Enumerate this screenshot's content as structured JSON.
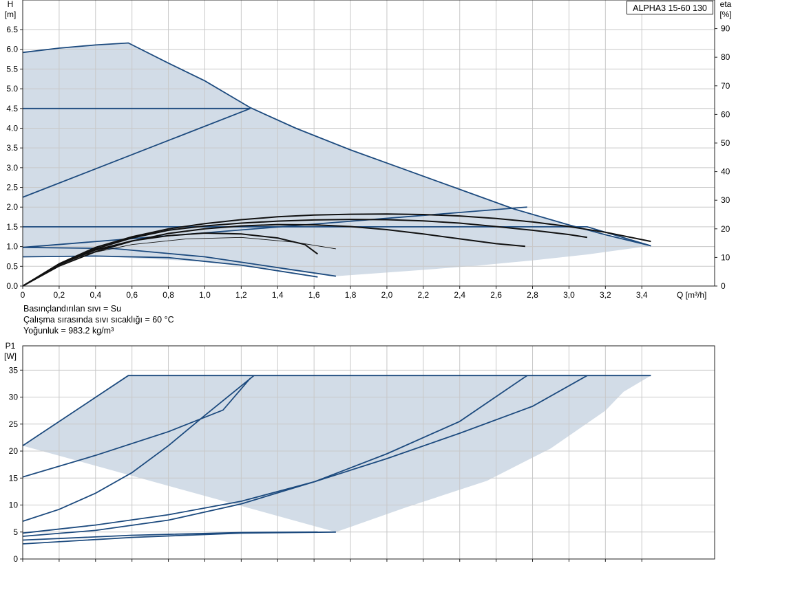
{
  "model": "ALPHA3 15-60 130",
  "info_lines": [
    "Basınçlandırılan sıvı = Su",
    "Çalışma sırasında sıvı sıcaklığı = 60 °C",
    "Yoğunluk = 983.2 kg/m³"
  ],
  "colors": {
    "fill": "#d2dce7",
    "curve": "#1c4a7e",
    "eta": "#111111",
    "grid": "#c8c8c8",
    "frame": "#222222"
  },
  "chart_data": [
    {
      "type": "line",
      "name": "head",
      "y_label_top": "H",
      "y_unit": "[m]",
      "y2_label_top": "eta",
      "y2_unit": "[%]",
      "x_label": "Q [m³/h]",
      "xlim": [
        0,
        3.8
      ],
      "ylim": [
        0,
        7.25
      ],
      "y2lim": [
        0,
        100
      ],
      "x_ticks": [
        "0",
        "0,2",
        "0,4",
        "0,6",
        "0,8",
        "1,0",
        "1,2",
        "1,4",
        "1,6",
        "1,8",
        "2,0",
        "2,2",
        "2,4",
        "2,6",
        "2,8",
        "3,0",
        "3,2",
        "3,4"
      ],
      "y_ticks": [
        "0.0",
        "0.5",
        "1.0",
        "1.5",
        "2.0",
        "2.5",
        "3.0",
        "3.5",
        "4.0",
        "4.5",
        "5.0",
        "5.5",
        "6.0",
        "6.5"
      ],
      "y2_ticks": [
        "0",
        "10",
        "20",
        "30",
        "40",
        "50",
        "60",
        "70",
        "80",
        "90"
      ],
      "grid": true,
      "envelope": [
        [
          0,
          5.92
        ],
        [
          0.2,
          6.03
        ],
        [
          0.4,
          6.11
        ],
        [
          0.58,
          6.16
        ],
        [
          0.8,
          5.65
        ],
        [
          1.0,
          5.2
        ],
        [
          1.25,
          4.52
        ],
        [
          1.5,
          4.0
        ],
        [
          1.8,
          3.45
        ],
        [
          2.1,
          2.95
        ],
        [
          2.4,
          2.45
        ],
        [
          2.7,
          1.95
        ],
        [
          3.0,
          1.55
        ],
        [
          3.2,
          1.3
        ],
        [
          3.45,
          1.02
        ],
        [
          3.1,
          0.8
        ],
        [
          2.8,
          0.65
        ],
        [
          2.5,
          0.52
        ],
        [
          2.2,
          0.41
        ],
        [
          1.9,
          0.31
        ],
        [
          1.72,
          0.25
        ],
        [
          1.4,
          0.42
        ],
        [
          1.0,
          0.62
        ],
        [
          0.4,
          0.75
        ],
        [
          0,
          0.74
        ]
      ],
      "head_curves": [
        {
          "name": "max-curve",
          "points": [
            [
              0,
              5.92
            ],
            [
              0.2,
              6.03
            ],
            [
              0.4,
              6.11
            ],
            [
              0.58,
              6.16
            ],
            [
              0.8,
              5.65
            ],
            [
              1.0,
              5.2
            ],
            [
              1.25,
              4.52
            ],
            [
              1.5,
              4.0
            ],
            [
              1.8,
              3.45
            ],
            [
              2.1,
              2.95
            ],
            [
              2.4,
              2.45
            ],
            [
              2.7,
              1.95
            ],
            [
              3.0,
              1.55
            ],
            [
              3.2,
              1.3
            ],
            [
              3.45,
              1.02
            ]
          ]
        },
        {
          "name": "constant-pressure-4.5",
          "points": [
            [
              0,
              4.5
            ],
            [
              1.25,
              4.5
            ]
          ]
        },
        {
          "name": "proportional-pressure-high",
          "points": [
            [
              0,
              2.25
            ],
            [
              1.25,
              4.5
            ]
          ]
        },
        {
          "name": "constant-pressure-1.5",
          "points": [
            [
              0,
              1.5
            ],
            [
              3.1,
              1.5
            ],
            [
              3.45,
              1.02
            ]
          ]
        },
        {
          "name": "proportional-pressure-low",
          "points": [
            [
              0,
              0.98
            ],
            [
              2.77,
              2.0
            ]
          ]
        },
        {
          "name": "min-curve-1",
          "points": [
            [
              0,
              0.74
            ],
            [
              0.4,
              0.76
            ],
            [
              0.8,
              0.72
            ],
            [
              1.2,
              0.53
            ],
            [
              1.62,
              0.23
            ]
          ]
        },
        {
          "name": "min-curve-2",
          "points": [
            [
              0,
              0.98
            ],
            [
              0.5,
              0.95
            ],
            [
              1.0,
              0.74
            ],
            [
              1.72,
              0.25
            ]
          ]
        }
      ],
      "eta_curves": [
        {
          "name": "eta-1",
          "points": [
            [
              0,
              0
            ],
            [
              0.2,
              7.5
            ],
            [
              0.4,
              13
            ],
            [
              0.6,
              16.8
            ],
            [
              0.8,
              19.5
            ],
            [
              1.0,
              21
            ],
            [
              1.2,
              22
            ],
            [
              1.4,
              22.7
            ],
            [
              1.6,
              23.1
            ],
            [
              1.8,
              23.3
            ],
            [
              2.0,
              23.2
            ],
            [
              2.2,
              22.8
            ],
            [
              2.4,
              22
            ],
            [
              2.6,
              20.8
            ],
            [
              2.8,
              19.5
            ],
            [
              3.0,
              18
            ],
            [
              3.1,
              17
            ]
          ]
        },
        {
          "name": "eta-2",
          "points": [
            [
              0,
              0
            ],
            [
              0.2,
              7.8
            ],
            [
              0.4,
              13.5
            ],
            [
              0.6,
              17.2
            ],
            [
              0.8,
              20
            ],
            [
              1.0,
              21.8
            ],
            [
              1.2,
              23.2
            ],
            [
              1.4,
              24.2
            ],
            [
              1.6,
              24.8
            ],
            [
              1.8,
              25.1
            ],
            [
              2.0,
              25.2
            ],
            [
              2.2,
              25
            ],
            [
              2.4,
              24.5
            ],
            [
              2.6,
              23.6
            ],
            [
              2.8,
              22.4
            ],
            [
              3.0,
              20.8
            ],
            [
              3.2,
              18.8
            ],
            [
              3.45,
              15.6
            ]
          ]
        },
        {
          "name": "eta-3",
          "points": [
            [
              0,
              0
            ],
            [
              0.2,
              7
            ],
            [
              0.4,
              12
            ],
            [
              0.6,
              15.7
            ],
            [
              0.8,
              18.4
            ],
            [
              1.0,
              20
            ],
            [
              1.2,
              21
            ],
            [
              1.4,
              21.5
            ],
            [
              1.6,
              21.4
            ],
            [
              1.8,
              20.8
            ],
            [
              2.0,
              19.7
            ],
            [
              2.2,
              18.2
            ],
            [
              2.4,
              16.5
            ],
            [
              2.6,
              14.8
            ],
            [
              2.76,
              13.9
            ]
          ]
        },
        {
          "name": "eta-4",
          "points": [
            [
              0,
              0
            ],
            [
              0.2,
              7.5
            ],
            [
              0.4,
              12.6
            ],
            [
              0.6,
              15.8
            ],
            [
              0.8,
              17.6
            ],
            [
              1.0,
              18.5
            ],
            [
              1.2,
              18.2
            ],
            [
              1.4,
              16.8
            ],
            [
              1.55,
              14.5
            ],
            [
              1.62,
              11.2
            ]
          ]
        },
        {
          "name": "eta-5",
          "points": [
            [
              0.3,
              10.5
            ],
            [
              0.6,
              14.5
            ],
            [
              0.9,
              16.5
            ],
            [
              1.2,
              17
            ],
            [
              1.5,
              15.3
            ],
            [
              1.72,
              13
            ]
          ]
        }
      ]
    },
    {
      "type": "line",
      "name": "power",
      "y_label_top": "P1",
      "y_unit": "[W]",
      "xlim": [
        0,
        3.8
      ],
      "ylim": [
        0,
        39.5
      ],
      "y_ticks": [
        "0",
        "5",
        "10",
        "15",
        "20",
        "25",
        "30",
        "35"
      ],
      "grid": true,
      "envelope": [
        [
          0,
          21
        ],
        [
          0.58,
          34
        ],
        [
          3.45,
          34
        ],
        [
          3.3,
          31
        ],
        [
          3.2,
          27.5
        ],
        [
          2.9,
          20.5
        ],
        [
          2.55,
          14.5
        ],
        [
          2.1,
          9.5
        ],
        [
          1.72,
          5
        ]
      ],
      "power_curves": [
        {
          "name": "max-power",
          "points": [
            [
              0,
              21
            ],
            [
              0.58,
              34
            ],
            [
              3.45,
              34
            ]
          ]
        },
        {
          "name": "cp-4.5-power",
          "points": [
            [
              0,
              15.2
            ],
            [
              0.4,
              19.2
            ],
            [
              0.8,
              23.6
            ],
            [
              1.1,
              27.6
            ],
            [
              1.25,
              33.5
            ]
          ]
        },
        {
          "name": "pp-high-power",
          "points": [
            [
              0,
              7
            ],
            [
              0.2,
              9.2
            ],
            [
              0.4,
              12.2
            ],
            [
              0.6,
              16
            ],
            [
              0.8,
              21
            ],
            [
              1.0,
              26.6
            ],
            [
              1.27,
              34
            ]
          ]
        },
        {
          "name": "cp-1.5-power",
          "points": [
            [
              0,
              4.8
            ],
            [
              0.4,
              6.3
            ],
            [
              0.8,
              8.2
            ],
            [
              1.2,
              10.7
            ],
            [
              1.6,
              14.3
            ],
            [
              2.0,
              18.6
            ],
            [
              2.4,
              23.3
            ],
            [
              2.8,
              28.3
            ],
            [
              3.1,
              34
            ]
          ]
        },
        {
          "name": "pp-low-power",
          "points": [
            [
              0,
              4.2
            ],
            [
              0.4,
              5.3
            ],
            [
              0.8,
              7.2
            ],
            [
              1.2,
              10.2
            ],
            [
              1.6,
              14.3
            ],
            [
              2.0,
              19.5
            ],
            [
              2.4,
              25.5
            ],
            [
              2.77,
              34
            ]
          ]
        },
        {
          "name": "min-power-1",
          "points": [
            [
              0,
              3.5
            ],
            [
              0.6,
              4.4
            ],
            [
              1.2,
              4.9
            ],
            [
              1.62,
              5
            ]
          ]
        },
        {
          "name": "min-power-2",
          "points": [
            [
              0,
              2.8
            ],
            [
              0.6,
              4
            ],
            [
              1.2,
              4.8
            ],
            [
              1.72,
              5
            ]
          ]
        }
      ]
    }
  ]
}
